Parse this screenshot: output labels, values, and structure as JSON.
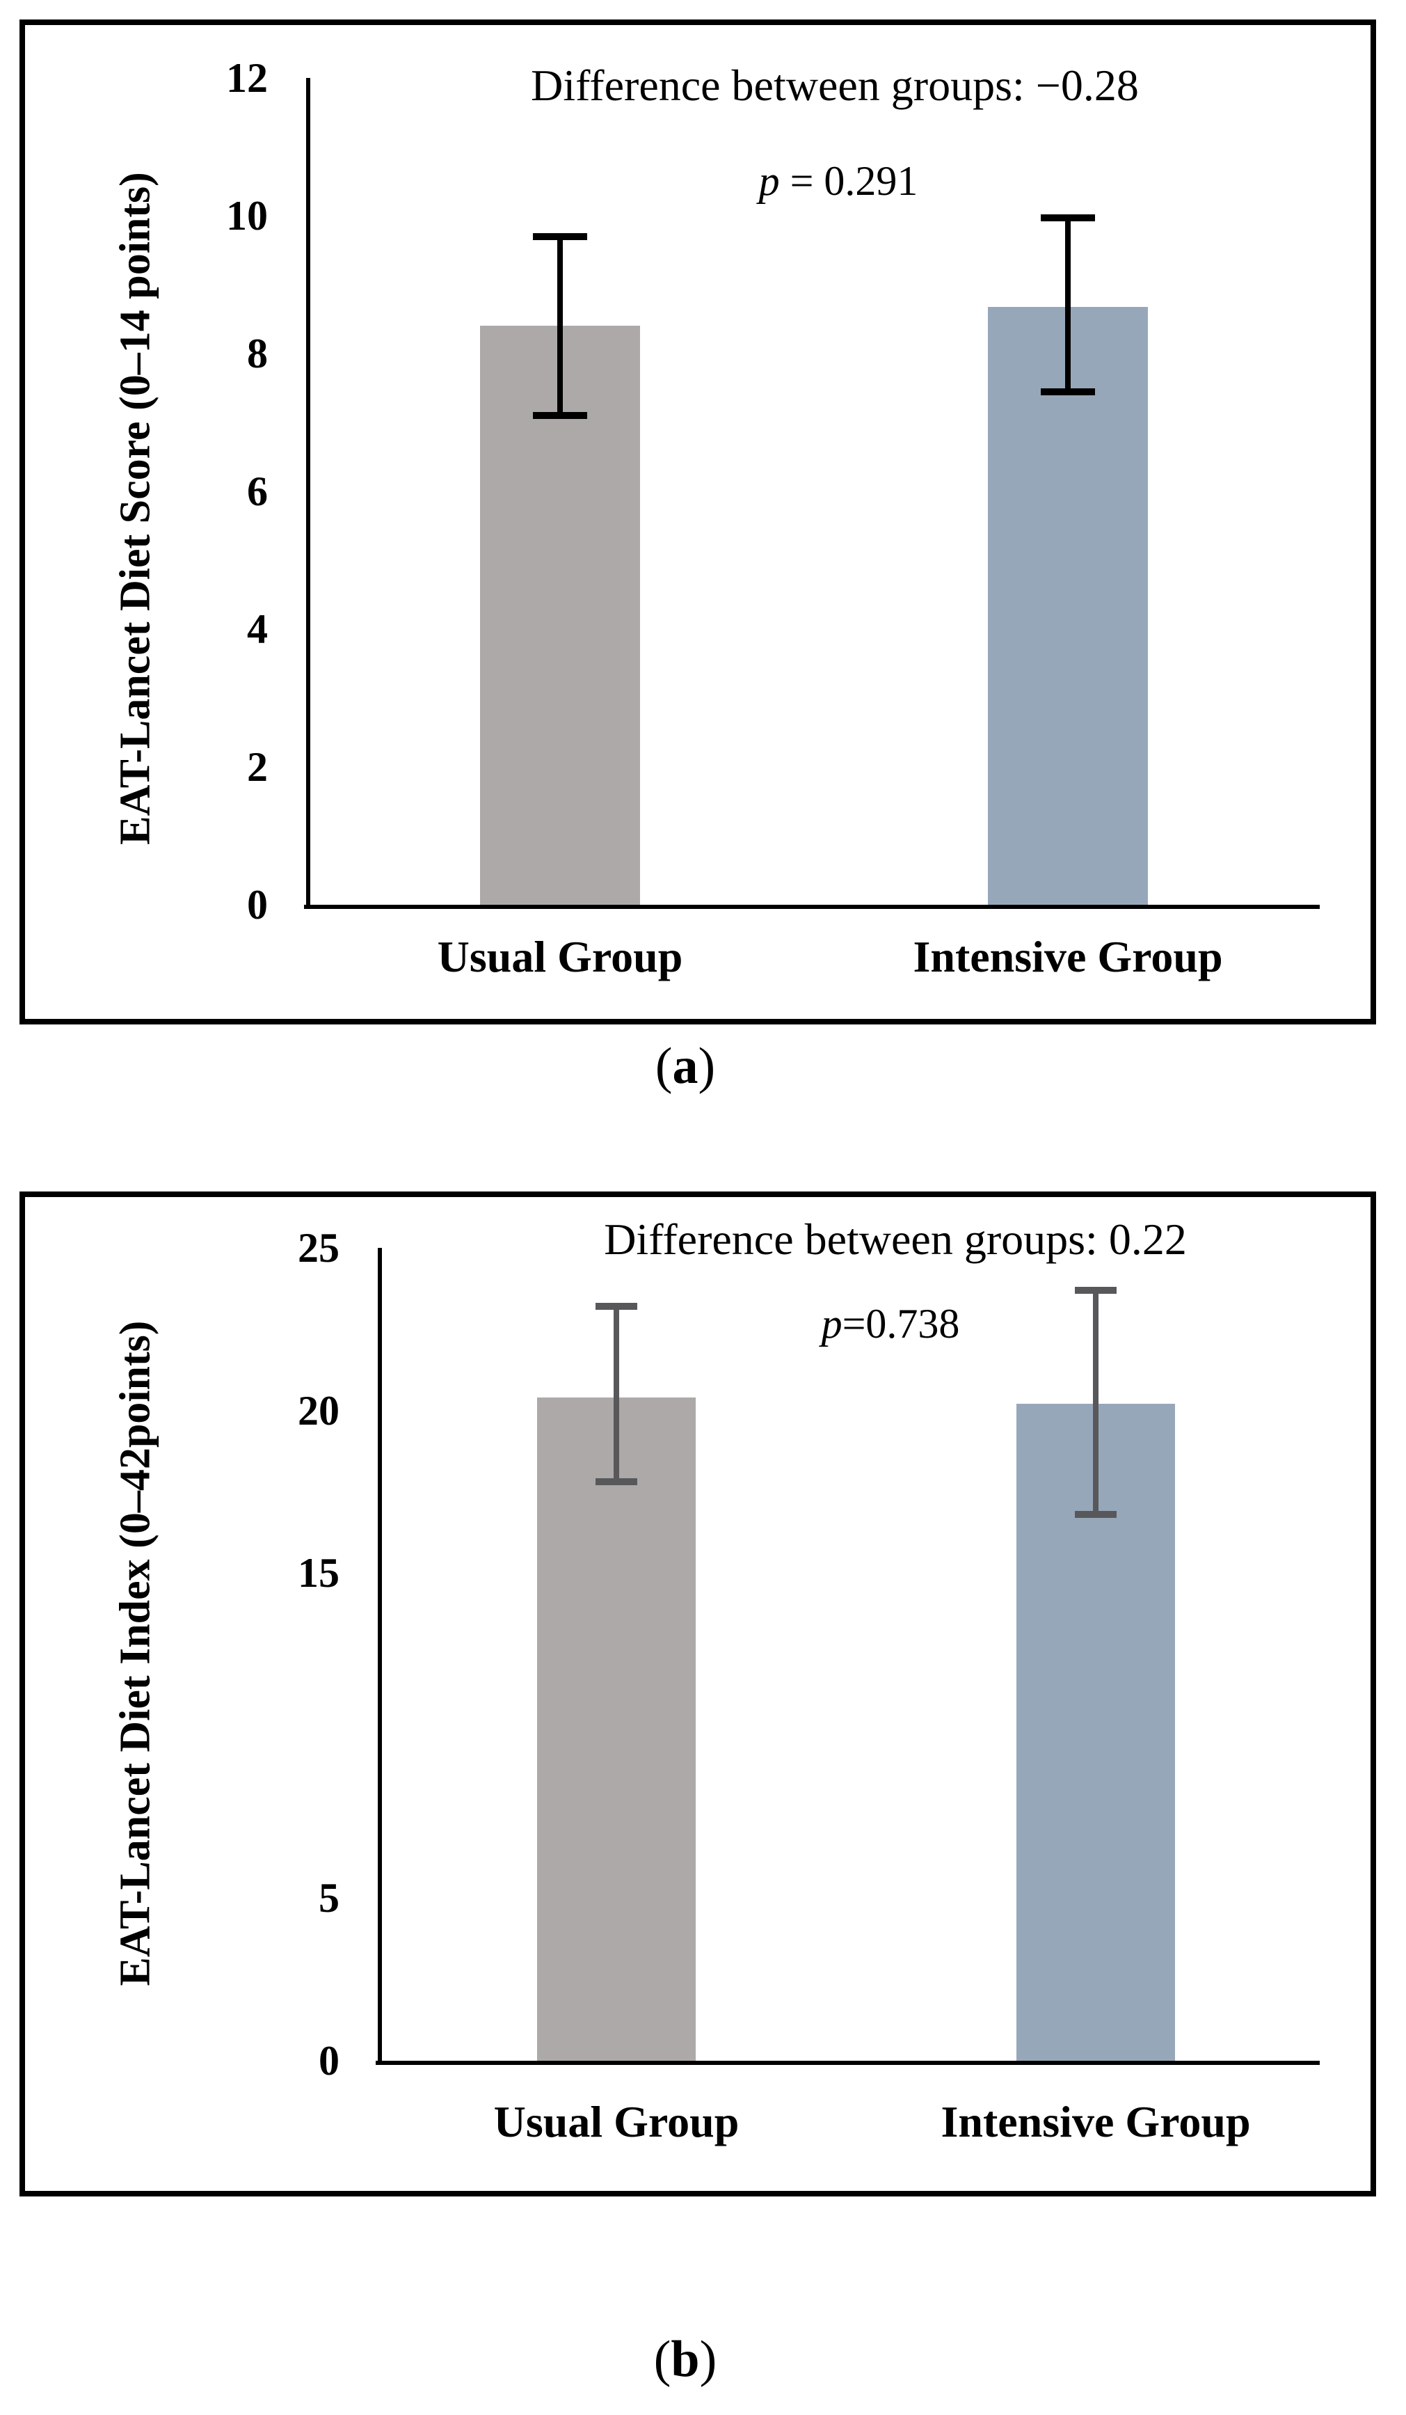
{
  "captions": {
    "a": {
      "open": "(",
      "letter": "a",
      "close": ")"
    },
    "b": {
      "open": "(",
      "letter": "b",
      "close": ")"
    }
  },
  "chart_data": [
    {
      "type": "bar",
      "panel": "a",
      "title": "Difference between groups: −0.28",
      "p_italic": "p",
      "p_rest": " = 0.291",
      "ylabel": "EAT-Lancet Diet Score (0–14 points)",
      "xlabel": "",
      "categories": [
        "Usual Group",
        "Intensive Group"
      ],
      "series": [
        {
          "name": "Usual Group",
          "mean": 8.4,
          "err_low": 7.1,
          "err_high": 9.7
        },
        {
          "name": "Intensive Group",
          "mean": 8.68,
          "err_low": 7.44,
          "err_high": 9.97
        }
      ],
      "ylim": [
        0,
        12
      ],
      "yticks": [
        12,
        10,
        8,
        6,
        4,
        2,
        0
      ],
      "grid": false,
      "legend": false,
      "bar_colors": [
        "#aca9a8",
        "#97a7ba"
      ],
      "error_color": "#000000"
    },
    {
      "type": "bar",
      "panel": "b",
      "title": "Difference between groups: 0.22",
      "p_italic": "p",
      "p_rest": "=0.738",
      "ylabel": "EAT-Lancet Diet Index (0–42points)",
      "xlabel": "",
      "categories": [
        "Usual Group",
        "Intensive Group"
      ],
      "series": [
        {
          "name": "Usual Group",
          "mean": 20.4,
          "err_low": 17.8,
          "err_high": 23.2
        },
        {
          "name": "Intensive Group",
          "mean": 20.2,
          "err_low": 16.8,
          "err_high": 23.7
        }
      ],
      "ylim": [
        0,
        25
      ],
      "yticks": [
        25,
        20,
        15,
        5,
        0
      ],
      "grid": false,
      "legend": false,
      "bar_colors": [
        "#aca9a8",
        "#97a7ba"
      ],
      "error_color": "#58585a"
    }
  ]
}
